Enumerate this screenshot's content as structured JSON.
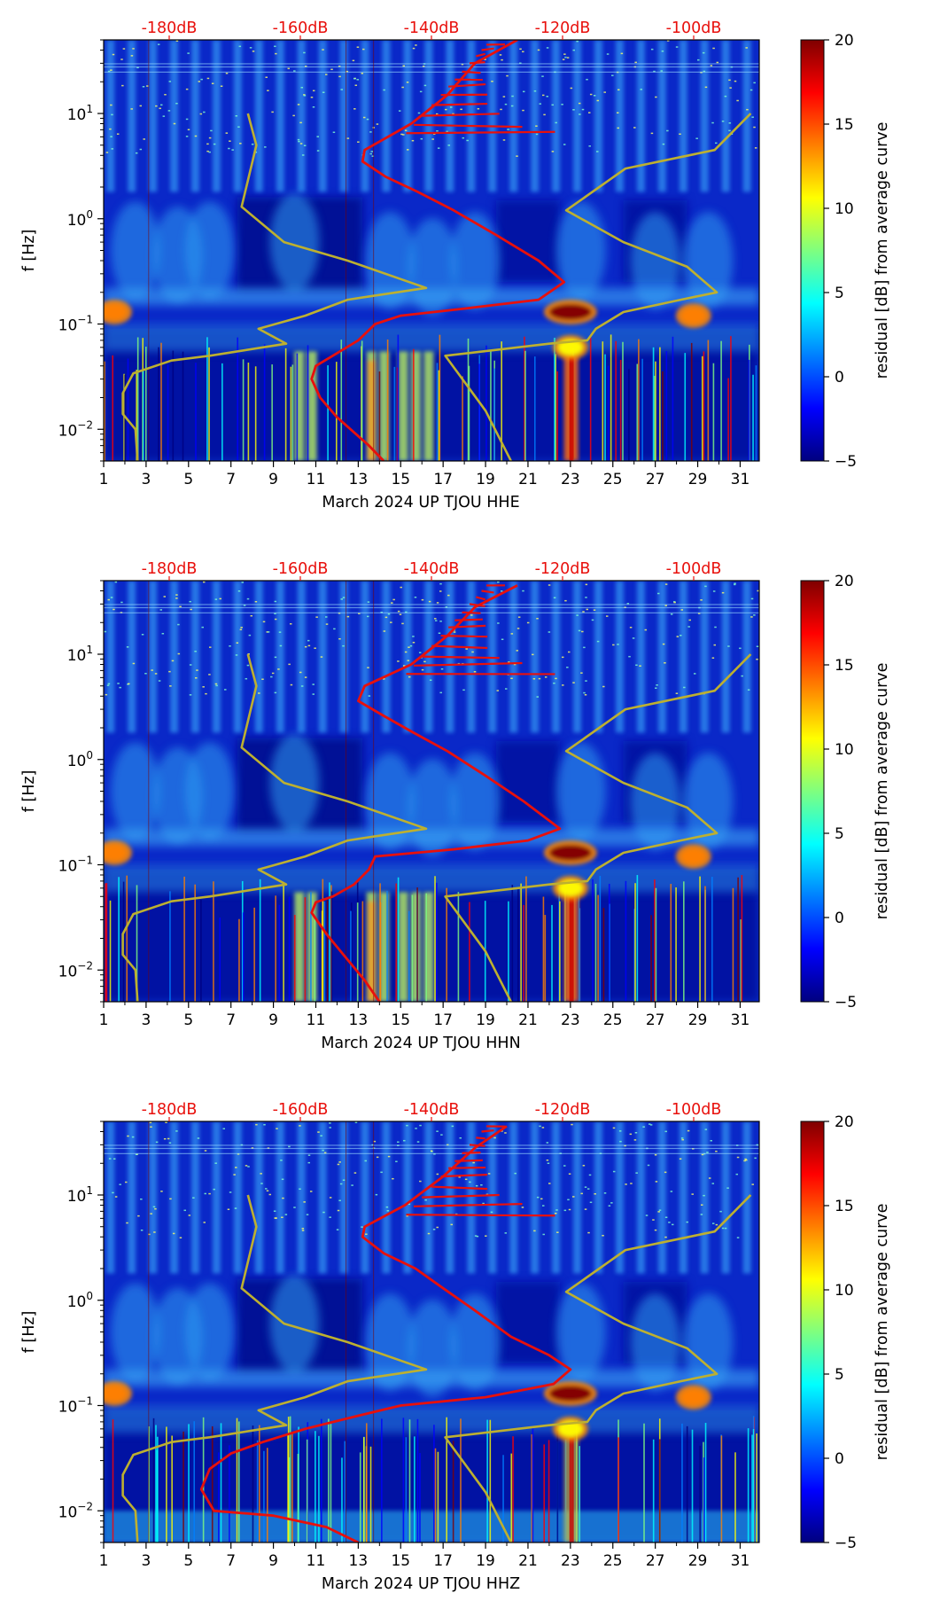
{
  "chart_data": [
    {
      "type": "heatmap",
      "channel": "HHE",
      "xlabel": "March 2024 UP TJOU  HHE",
      "ylabel": "f [Hz]",
      "x_ticks": [
        "1",
        "3",
        "5",
        "7",
        "9",
        "11",
        "13",
        "15",
        "17",
        "19",
        "21",
        "23",
        "25",
        "27",
        "29",
        "31"
      ],
      "xlim": [
        1,
        31.9
      ],
      "y_scale": "log",
      "ylim": [
        0.005,
        50
      ],
      "y_ticks": [
        {
          "base": "10",
          "exp": "1"
        },
        {
          "base": "10",
          "exp": "0"
        },
        {
          "base": "10",
          "exp": "−1"
        },
        {
          "base": "10",
          "exp": "−2"
        }
      ],
      "top_axis_labels": [
        "-180dB",
        "-160dB",
        "-140dB",
        "-120dB",
        "-100dB"
      ],
      "colorbar": {
        "label": "residual [dB] from average curve",
        "ticks": [
          "20",
          "15",
          "10",
          "5",
          "0",
          "−5"
        ],
        "range": [
          -5,
          20
        ]
      },
      "red_curve": [
        {
          "x": 20.5,
          "f": 50
        },
        {
          "x": 18.5,
          "f": 30
        },
        {
          "x": 17.2,
          "f": 15
        },
        {
          "x": 15.5,
          "f": 8
        },
        {
          "x": 13.3,
          "f": 4.5
        },
        {
          "x": 13.2,
          "f": 3.5
        },
        {
          "x": 14.3,
          "f": 2.5
        },
        {
          "x": 15.8,
          "f": 1.8
        },
        {
          "x": 17.5,
          "f": 1.2
        },
        {
          "x": 19.5,
          "f": 0.7
        },
        {
          "x": 21.5,
          "f": 0.4
        },
        {
          "x": 22.7,
          "f": 0.25
        },
        {
          "x": 21.5,
          "f": 0.17
        },
        {
          "x": 18,
          "f": 0.14
        },
        {
          "x": 15,
          "f": 0.12
        },
        {
          "x": 13.8,
          "f": 0.1
        },
        {
          "x": 13,
          "f": 0.07
        },
        {
          "x": 11.8,
          "f": 0.05
        },
        {
          "x": 11,
          "f": 0.04
        },
        {
          "x": 10.8,
          "f": 0.03
        },
        {
          "x": 11.2,
          "f": 0.02
        },
        {
          "x": 12,
          "f": 0.013
        },
        {
          "x": 13.5,
          "f": 0.007
        },
        {
          "x": 14.2,
          "f": 0.005
        }
      ],
      "olive_curve_left": [
        {
          "x": 7.8,
          "f": 10
        },
        {
          "x": 8.2,
          "f": 5
        },
        {
          "x": 7.5,
          "f": 1.3
        },
        {
          "x": 9.5,
          "f": 0.6
        },
        {
          "x": 12.5,
          "f": 0.4
        },
        {
          "x": 16.2,
          "f": 0.22
        },
        {
          "x": 12.5,
          "f": 0.17
        },
        {
          "x": 10.5,
          "f": 0.12
        },
        {
          "x": 8.3,
          "f": 0.09
        },
        {
          "x": 9.6,
          "f": 0.065
        },
        {
          "x": 6,
          "f": 0.05
        },
        {
          "x": 4.2,
          "f": 0.045
        },
        {
          "x": 2.4,
          "f": 0.034
        },
        {
          "x": 1.9,
          "f": 0.022
        },
        {
          "x": 1.9,
          "f": 0.014
        },
        {
          "x": 2.5,
          "f": 0.01
        },
        {
          "x": 2.6,
          "f": 0.005
        }
      ],
      "olive_curve_right": [
        {
          "x": 31.5,
          "f": 10
        },
        {
          "x": 29.8,
          "f": 4.5
        },
        {
          "x": 25.6,
          "f": 3
        },
        {
          "x": 22.8,
          "f": 1.2
        },
        {
          "x": 25.5,
          "f": 0.6
        },
        {
          "x": 28.5,
          "f": 0.35
        },
        {
          "x": 29.9,
          "f": 0.2
        },
        {
          "x": 28.2,
          "f": 0.17
        },
        {
          "x": 25.5,
          "f": 0.13
        },
        {
          "x": 24.2,
          "f": 0.09
        },
        {
          "x": 23.8,
          "f": 0.07
        },
        {
          "x": 22,
          "f": 0.065
        },
        {
          "x": 17.1,
          "f": 0.05
        },
        {
          "x": 19,
          "f": 0.015
        },
        {
          "x": 20.2,
          "f": 0.005
        }
      ],
      "hot_spots": [
        {
          "x": 23,
          "f": 0.13,
          "level": 20
        },
        {
          "x": 1.5,
          "f": 0.13,
          "level": 15
        },
        {
          "x": 28.8,
          "f": 0.12,
          "level": 15
        },
        {
          "x": 23,
          "f": 0.06,
          "level": 12
        }
      ]
    },
    {
      "type": "heatmap",
      "channel": "HHN",
      "xlabel": "March 2024 UP TJOU  HHN",
      "ylabel": "f [Hz]",
      "x_ticks": [
        "1",
        "3",
        "5",
        "7",
        "9",
        "11",
        "13",
        "15",
        "17",
        "19",
        "21",
        "23",
        "25",
        "27",
        "29",
        "31"
      ],
      "xlim": [
        1,
        31.9
      ],
      "y_scale": "log",
      "ylim": [
        0.005,
        50
      ],
      "y_ticks": [
        {
          "base": "10",
          "exp": "1"
        },
        {
          "base": "10",
          "exp": "0"
        },
        {
          "base": "10",
          "exp": "−1"
        },
        {
          "base": "10",
          "exp": "−2"
        }
      ],
      "top_axis_labels": [
        "-180dB",
        "-160dB",
        "-140dB",
        "-120dB",
        "-100dB"
      ],
      "colorbar": {
        "label": "residual [dB] from average curve",
        "ticks": [
          "20",
          "15",
          "10",
          "5",
          "0",
          "−5"
        ],
        "range": [
          -5,
          20
        ]
      },
      "red_curve": [
        {
          "x": 20.5,
          "f": 45
        },
        {
          "x": 18.5,
          "f": 28
        },
        {
          "x": 17.2,
          "f": 15
        },
        {
          "x": 15.5,
          "f": 8
        },
        {
          "x": 13.3,
          "f": 5
        },
        {
          "x": 13,
          "f": 3.6
        },
        {
          "x": 14.2,
          "f": 2.6
        },
        {
          "x": 15.6,
          "f": 1.8
        },
        {
          "x": 17.2,
          "f": 1.2
        },
        {
          "x": 19,
          "f": 0.7
        },
        {
          "x": 20.8,
          "f": 0.4
        },
        {
          "x": 22.5,
          "f": 0.22
        },
        {
          "x": 21,
          "f": 0.17
        },
        {
          "x": 17.5,
          "f": 0.14
        },
        {
          "x": 13.8,
          "f": 0.12
        },
        {
          "x": 13.5,
          "f": 0.09
        },
        {
          "x": 12.8,
          "f": 0.065
        },
        {
          "x": 11.8,
          "f": 0.05
        },
        {
          "x": 11,
          "f": 0.044
        },
        {
          "x": 10.8,
          "f": 0.035
        },
        {
          "x": 11.5,
          "f": 0.022
        },
        {
          "x": 12.3,
          "f": 0.014
        },
        {
          "x": 13.3,
          "f": 0.008
        },
        {
          "x": 14,
          "f": 0.005
        }
      ],
      "olive_curve_left": [
        {
          "x": 7.8,
          "f": 10
        },
        {
          "x": 8.2,
          "f": 5
        },
        {
          "x": 7.5,
          "f": 1.3
        },
        {
          "x": 9.5,
          "f": 0.6
        },
        {
          "x": 12.5,
          "f": 0.4
        },
        {
          "x": 16.2,
          "f": 0.22
        },
        {
          "x": 12.5,
          "f": 0.17
        },
        {
          "x": 10.5,
          "f": 0.12
        },
        {
          "x": 8.3,
          "f": 0.09
        },
        {
          "x": 9.6,
          "f": 0.065
        },
        {
          "x": 6,
          "f": 0.05
        },
        {
          "x": 4.2,
          "f": 0.045
        },
        {
          "x": 2.4,
          "f": 0.034
        },
        {
          "x": 1.9,
          "f": 0.022
        },
        {
          "x": 1.9,
          "f": 0.014
        },
        {
          "x": 2.5,
          "f": 0.01
        },
        {
          "x": 2.6,
          "f": 0.005
        }
      ],
      "olive_curve_right": [
        {
          "x": 31.5,
          "f": 10
        },
        {
          "x": 29.8,
          "f": 4.5
        },
        {
          "x": 25.6,
          "f": 3
        },
        {
          "x": 22.8,
          "f": 1.2
        },
        {
          "x": 25.5,
          "f": 0.6
        },
        {
          "x": 28.5,
          "f": 0.35
        },
        {
          "x": 29.9,
          "f": 0.2
        },
        {
          "x": 28.2,
          "f": 0.17
        },
        {
          "x": 25.5,
          "f": 0.13
        },
        {
          "x": 24.2,
          "f": 0.09
        },
        {
          "x": 23.8,
          "f": 0.07
        },
        {
          "x": 22,
          "f": 0.065
        },
        {
          "x": 17.1,
          "f": 0.05
        },
        {
          "x": 19,
          "f": 0.015
        },
        {
          "x": 20.2,
          "f": 0.005
        }
      ],
      "hot_spots": [
        {
          "x": 23,
          "f": 0.13,
          "level": 20
        },
        {
          "x": 1.5,
          "f": 0.13,
          "level": 15
        },
        {
          "x": 28.8,
          "f": 0.12,
          "level": 15
        },
        {
          "x": 23,
          "f": 0.06,
          "level": 12
        }
      ]
    },
    {
      "type": "heatmap",
      "channel": "HHZ",
      "xlabel": "March 2024 UP TJOU  HHZ",
      "ylabel": "f [Hz]",
      "x_ticks": [
        "1",
        "3",
        "5",
        "7",
        "9",
        "11",
        "13",
        "15",
        "17",
        "19",
        "21",
        "23",
        "25",
        "27",
        "29",
        "31"
      ],
      "xlim": [
        1,
        31.9
      ],
      "y_scale": "log",
      "ylim": [
        0.005,
        50
      ],
      "y_ticks": [
        {
          "base": "10",
          "exp": "1"
        },
        {
          "base": "10",
          "exp": "0"
        },
        {
          "base": "10",
          "exp": "−1"
        },
        {
          "base": "10",
          "exp": "−2"
        }
      ],
      "top_axis_labels": [
        "-180dB",
        "-160dB",
        "-140dB",
        "-120dB",
        "-100dB"
      ],
      "colorbar": {
        "label": "residual [dB] from average curve",
        "ticks": [
          "20",
          "15",
          "10",
          "5",
          "0",
          "−5"
        ],
        "range": [
          -5,
          20
        ]
      },
      "red_curve": [
        {
          "x": 20,
          "f": 45
        },
        {
          "x": 18.5,
          "f": 28
        },
        {
          "x": 17,
          "f": 15
        },
        {
          "x": 15.2,
          "f": 8
        },
        {
          "x": 13.3,
          "f": 5
        },
        {
          "x": 13.2,
          "f": 4
        },
        {
          "x": 14.2,
          "f": 2.8
        },
        {
          "x": 15.7,
          "f": 2
        },
        {
          "x": 17,
          "f": 1.3
        },
        {
          "x": 18.5,
          "f": 0.8
        },
        {
          "x": 20.2,
          "f": 0.45
        },
        {
          "x": 22,
          "f": 0.3
        },
        {
          "x": 23,
          "f": 0.22
        },
        {
          "x": 22.2,
          "f": 0.16
        },
        {
          "x": 19,
          "f": 0.12
        },
        {
          "x": 15,
          "f": 0.1
        },
        {
          "x": 13,
          "f": 0.08
        },
        {
          "x": 10.5,
          "f": 0.06
        },
        {
          "x": 8.5,
          "f": 0.045
        },
        {
          "x": 7,
          "f": 0.035
        },
        {
          "x": 6,
          "f": 0.025
        },
        {
          "x": 5.6,
          "f": 0.016
        },
        {
          "x": 6.2,
          "f": 0.01
        },
        {
          "x": 9,
          "f": 0.009
        },
        {
          "x": 11.5,
          "f": 0.007
        },
        {
          "x": 13,
          "f": 0.005
        }
      ],
      "olive_curve_left": [
        {
          "x": 7.8,
          "f": 10
        },
        {
          "x": 8.2,
          "f": 5
        },
        {
          "x": 7.5,
          "f": 1.3
        },
        {
          "x": 9.5,
          "f": 0.6
        },
        {
          "x": 12.5,
          "f": 0.4
        },
        {
          "x": 16.2,
          "f": 0.22
        },
        {
          "x": 12.5,
          "f": 0.17
        },
        {
          "x": 10.5,
          "f": 0.12
        },
        {
          "x": 8.3,
          "f": 0.09
        },
        {
          "x": 9.6,
          "f": 0.065
        },
        {
          "x": 6,
          "f": 0.05
        },
        {
          "x": 4.2,
          "f": 0.045
        },
        {
          "x": 2.4,
          "f": 0.034
        },
        {
          "x": 1.9,
          "f": 0.022
        },
        {
          "x": 1.9,
          "f": 0.014
        },
        {
          "x": 2.5,
          "f": 0.01
        },
        {
          "x": 2.6,
          "f": 0.005
        }
      ],
      "olive_curve_right": [
        {
          "x": 31.5,
          "f": 10
        },
        {
          "x": 29.8,
          "f": 4.5
        },
        {
          "x": 25.6,
          "f": 3
        },
        {
          "x": 22.8,
          "f": 1.2
        },
        {
          "x": 25.5,
          "f": 0.6
        },
        {
          "x": 28.5,
          "f": 0.35
        },
        {
          "x": 29.9,
          "f": 0.2
        },
        {
          "x": 28.2,
          "f": 0.17
        },
        {
          "x": 25.5,
          "f": 0.13
        },
        {
          "x": 24.2,
          "f": 0.09
        },
        {
          "x": 23.8,
          "f": 0.07
        },
        {
          "x": 22,
          "f": 0.065
        },
        {
          "x": 17.1,
          "f": 0.05
        },
        {
          "x": 19,
          "f": 0.015
        },
        {
          "x": 20.2,
          "f": 0.005
        }
      ],
      "hot_spots": [
        {
          "x": 23,
          "f": 0.13,
          "level": 20
        },
        {
          "x": 1.5,
          "f": 0.13,
          "level": 15
        },
        {
          "x": 28.8,
          "f": 0.12,
          "level": 15
        },
        {
          "x": 23,
          "f": 0.06,
          "level": 12
        }
      ]
    }
  ],
  "colors": {
    "red_curve": "#e8100c",
    "olive_curve": "#bdb030",
    "top_labels": "#e8100c",
    "colormap": [
      "#00007f",
      "#0000ff",
      "#007fff",
      "#00ffff",
      "#7fff7f",
      "#ffff00",
      "#ff7f00",
      "#ff0000",
      "#7f0000"
    ]
  }
}
